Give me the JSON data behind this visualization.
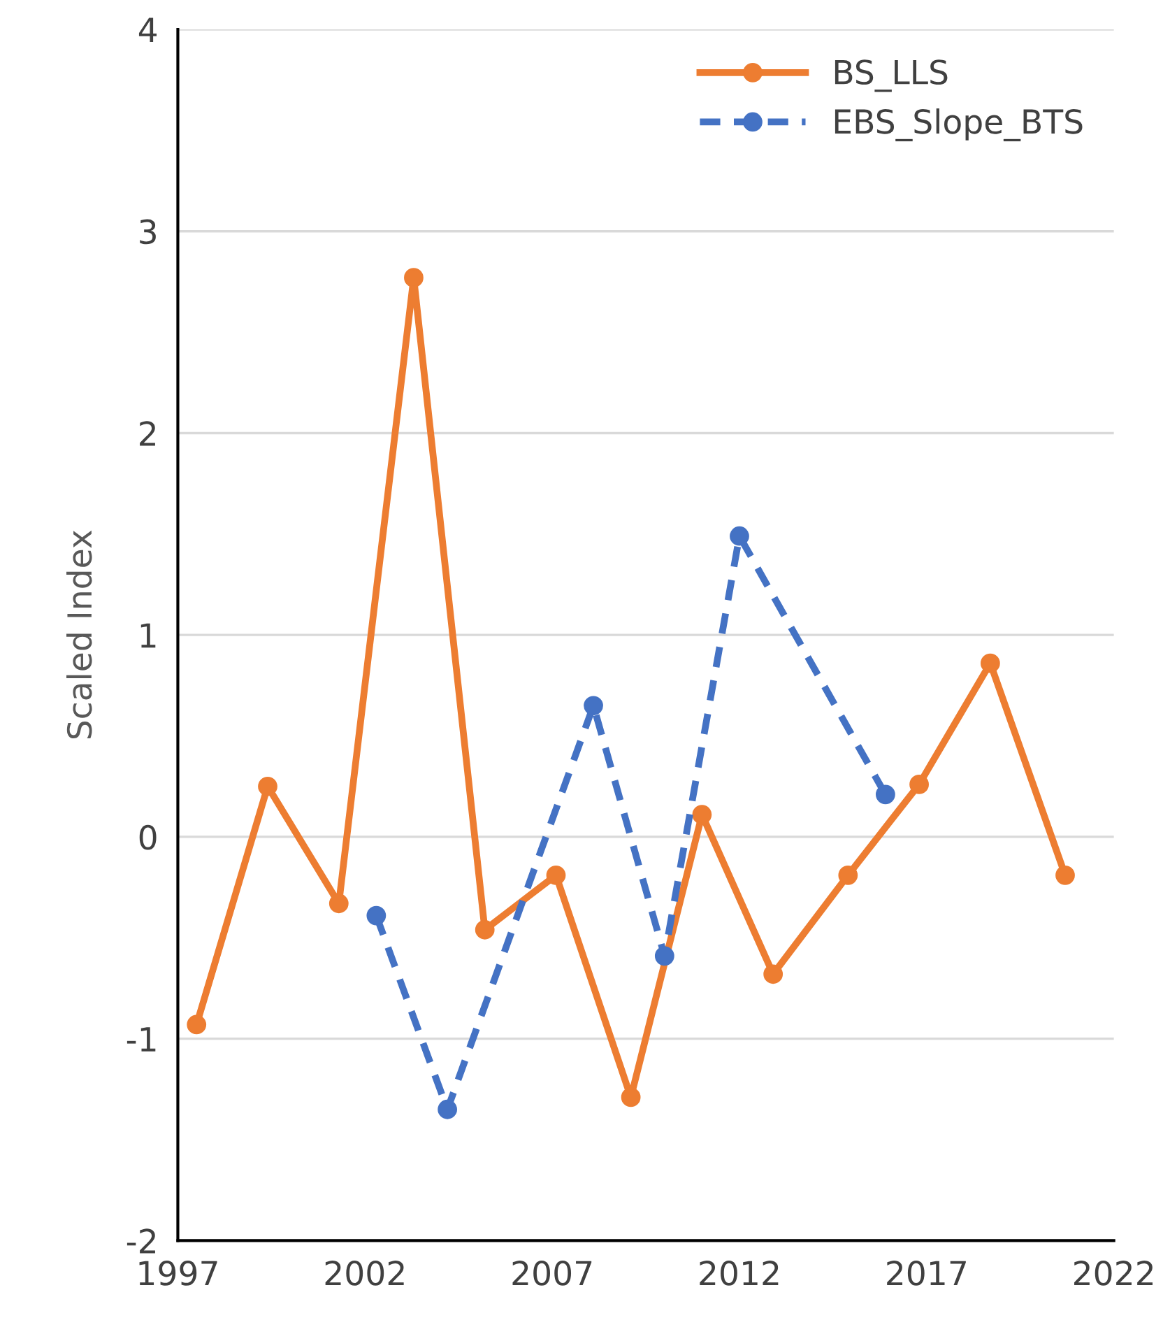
{
  "chart_data": {
    "type": "line",
    "ylabel": "Scaled Index",
    "xlim": [
      1997,
      2022
    ],
    "xticks": [
      1997,
      2002,
      2007,
      2012,
      2017,
      2022
    ],
    "ylim": [
      -2,
      4
    ],
    "yticks": [
      -2,
      -1,
      0,
      1,
      2,
      3,
      4
    ],
    "grid": "y",
    "legend": "top right",
    "marker": "circle",
    "series": [
      {
        "name": "BS_LLS",
        "color": "#ed7d31",
        "line_style": "solid",
        "x": [
          1997.5,
          1999.4,
          2001.3,
          2003.3,
          2005.2,
          2007.1,
          2009.1,
          2011.0,
          2012.9,
          2014.9,
          2016.8,
          2018.7,
          2020.7
        ],
        "values": [
          -0.93,
          0.25,
          -0.33,
          2.77,
          -0.46,
          -0.19,
          -1.29,
          0.11,
          -0.68,
          -0.19,
          0.26,
          0.86,
          -0.19
        ]
      },
      {
        "name": "EBS_Slope_BTS",
        "color": "#4472c4",
        "line_style": "dashed",
        "x": [
          2002.3,
          2004.2,
          2008.1,
          2010.0,
          2012.0,
          2015.9
        ],
        "values": [
          -0.39,
          -1.35,
          0.65,
          -0.59,
          1.49,
          0.21
        ]
      }
    ]
  }
}
